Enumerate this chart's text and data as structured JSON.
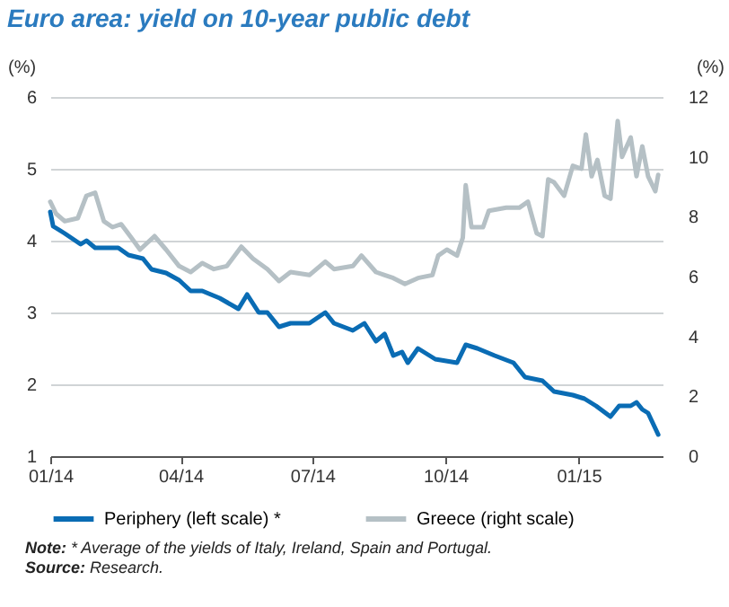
{
  "chart_data": {
    "type": "line",
    "title": "Euro area: yield on 10-year public debt",
    "ylabel": "(%)",
    "y2label": "(%)",
    "xlim": [
      "2014-01-01",
      "2015-02-28"
    ],
    "xticks": [
      {
        "value": "2014-01-01",
        "label": "01/14"
      },
      {
        "value": "2014-04-01",
        "label": "04/14"
      },
      {
        "value": "2014-07-01",
        "label": "07/14"
      },
      {
        "value": "2014-10-01",
        "label": "10/14"
      },
      {
        "value": "2015-01-01",
        "label": "01/15"
      }
    ],
    "ylim": [
      1,
      6
    ],
    "yticks": [
      1,
      2,
      3,
      4,
      5,
      6
    ],
    "y2lim": [
      0,
      12
    ],
    "y2ticks": [
      0,
      2,
      4,
      6,
      8,
      10,
      12
    ],
    "grid": "y",
    "legend": "bottom",
    "series": [
      {
        "name": "Periphery (left scale) *",
        "color": "#0a6cb4",
        "x": [
          "2014-01-01",
          "2014-01-03",
          "2014-01-11",
          "2014-01-22",
          "2014-01-26",
          "2014-02-01",
          "2014-02-17",
          "2014-02-24",
          "2014-03-06",
          "2014-03-12",
          "2014-03-22",
          "2014-03-31",
          "2014-04-08",
          "2014-04-16",
          "2014-04-28",
          "2014-05-11",
          "2014-05-17",
          "2014-05-25",
          "2014-05-31",
          "2014-06-08",
          "2014-06-16",
          "2014-06-29",
          "2014-07-10",
          "2014-07-16",
          "2014-07-29",
          "2014-08-06",
          "2014-08-14",
          "2014-08-20",
          "2014-08-26",
          "2014-09-01",
          "2014-09-05",
          "2014-09-12",
          "2014-09-24",
          "2014-10-09",
          "2014-10-15",
          "2014-10-23",
          "2014-11-04",
          "2014-11-17",
          "2014-11-25",
          "2014-12-07",
          "2014-12-15",
          "2014-12-28",
          "2015-01-05",
          "2015-01-13",
          "2015-01-23",
          "2015-01-29",
          "2015-02-06",
          "2015-02-10",
          "2015-02-14",
          "2015-02-18",
          "2015-02-25"
        ],
        "values": [
          4.4,
          4.2,
          4.1,
          3.95,
          4.0,
          3.9,
          3.9,
          3.8,
          3.75,
          3.6,
          3.55,
          3.45,
          3.3,
          3.3,
          3.2,
          3.05,
          3.25,
          3.0,
          3.0,
          2.8,
          2.85,
          2.85,
          3.0,
          2.85,
          2.75,
          2.85,
          2.6,
          2.7,
          2.4,
          2.45,
          2.3,
          2.5,
          2.35,
          2.3,
          2.55,
          2.5,
          2.4,
          2.3,
          2.1,
          2.05,
          1.9,
          1.85,
          1.8,
          1.7,
          1.55,
          1.7,
          1.7,
          1.75,
          1.65,
          1.6,
          1.3
        ]
      },
      {
        "name": "Greece (right scale)",
        "color": "#b5c0c5",
        "axis": "y2",
        "x": [
          "2014-01-01",
          "2014-01-05",
          "2014-01-11",
          "2014-01-20",
          "2014-01-26",
          "2014-02-01",
          "2014-02-07",
          "2014-02-13",
          "2014-02-19",
          "2014-02-26",
          "2014-03-04",
          "2014-03-14",
          "2014-03-22",
          "2014-03-31",
          "2014-04-08",
          "2014-04-16",
          "2014-04-24",
          "2014-05-03",
          "2014-05-13",
          "2014-05-21",
          "2014-05-31",
          "2014-06-08",
          "2014-06-16",
          "2014-06-29",
          "2014-07-10",
          "2014-07-16",
          "2014-07-29",
          "2014-08-04",
          "2014-08-14",
          "2014-08-20",
          "2014-08-26",
          "2014-09-03",
          "2014-09-12",
          "2014-09-22",
          "2014-09-26",
          "2014-10-02",
          "2014-10-09",
          "2014-10-13",
          "2014-10-15",
          "2014-10-19",
          "2014-10-27",
          "2014-10-31",
          "2014-11-12",
          "2014-11-21",
          "2014-11-27",
          "2014-12-03",
          "2014-12-07",
          "2014-12-11",
          "2014-12-15",
          "2014-12-22",
          "2014-12-28",
          "2015-01-03",
          "2015-01-06",
          "2015-01-10",
          "2015-01-14",
          "2015-01-19",
          "2015-01-23",
          "2015-01-28",
          "2015-01-31",
          "2015-02-06",
          "2015-02-10",
          "2015-02-14",
          "2015-02-18",
          "2015-02-23",
          "2015-02-25"
        ],
        "values": [
          8.5,
          8.1,
          7.85,
          7.95,
          8.7,
          8.8,
          7.85,
          7.65,
          7.75,
          7.3,
          6.9,
          7.35,
          6.9,
          6.35,
          6.15,
          6.45,
          6.25,
          6.35,
          7.0,
          6.6,
          6.25,
          5.85,
          6.15,
          6.05,
          6.5,
          6.25,
          6.35,
          6.7,
          6.15,
          6.05,
          5.95,
          5.75,
          5.95,
          6.05,
          6.7,
          6.9,
          6.7,
          7.3,
          9.05,
          7.65,
          7.65,
          8.2,
          8.3,
          8.3,
          8.5,
          7.45,
          7.35,
          9.25,
          9.15,
          8.7,
          9.7,
          9.6,
          10.75,
          9.35,
          9.9,
          8.7,
          8.6,
          11.2,
          10.0,
          10.65,
          9.35,
          10.35,
          9.35,
          8.85,
          9.4
        ]
      }
    ],
    "annotations": [
      "Note: * Average of the yields of Italy, Ireland, Spain and Portugal.",
      "Source: Research."
    ]
  }
}
